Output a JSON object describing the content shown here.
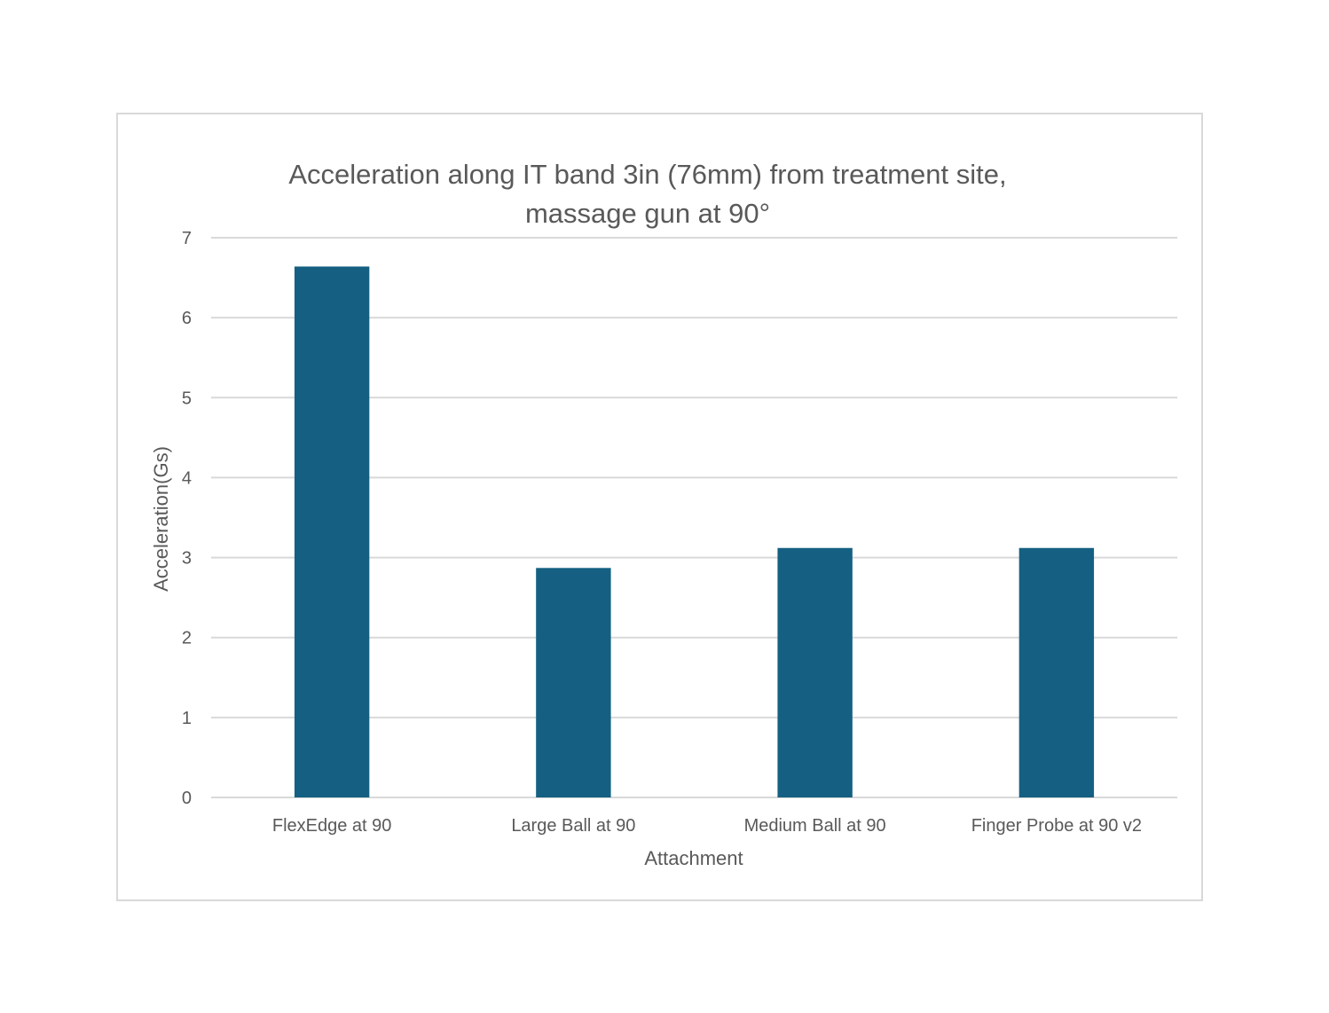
{
  "chart_data": {
    "type": "bar",
    "title_lines": [
      "Acceleration along IT band 3in (76mm) from treatment site,",
      "massage gun at 90°"
    ],
    "xlabel": "Attachment",
    "ylabel": "Acceleration(Gs)",
    "categories": [
      "FlexEdge at 90",
      "Large Ball at 90",
      "Medium Ball at 90",
      "Finger Probe at 90 v2"
    ],
    "values": [
      6.64,
      2.87,
      3.12,
      3.12
    ],
    "ylim": [
      0,
      7
    ],
    "yticks": [
      "0",
      "1",
      "2",
      "3",
      "4",
      "5",
      "6",
      "7"
    ],
    "grid": true,
    "legend": "none",
    "bar_color": "#156082",
    "grid_color": "#d9d9d9",
    "text_color": "#595959"
  }
}
